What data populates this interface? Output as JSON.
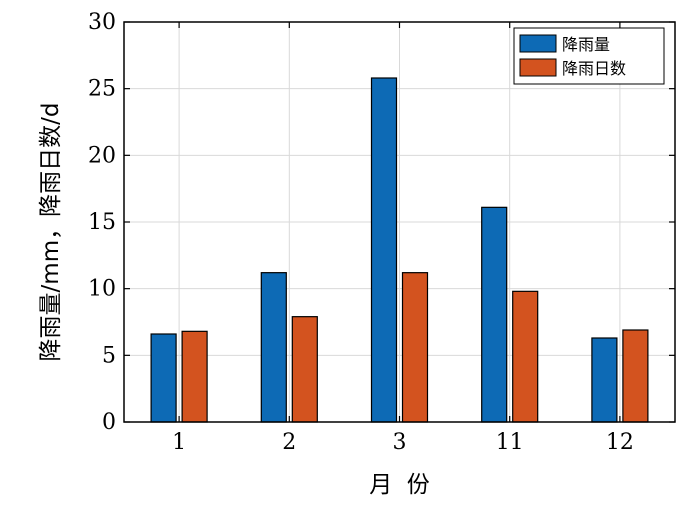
{
  "chart_data": {
    "type": "bar",
    "categories": [
      "1",
      "2",
      "3",
      "11",
      "12"
    ],
    "series": [
      {
        "name": "降雨量",
        "values": [
          6.6,
          11.2,
          25.8,
          16.1,
          6.3
        ],
        "color": "#0d6ab5"
      },
      {
        "name": "降雨日数",
        "values": [
          6.8,
          7.9,
          11.2,
          9.8,
          6.9
        ],
        "color": "#d3531f"
      }
    ],
    "xlabel": "月  份",
    "ylabel": "降雨量/mm，降雨日数/d",
    "ylim": [
      0,
      30
    ],
    "yticks": [
      0,
      5,
      10,
      15,
      20,
      25,
      30
    ],
    "grid": true,
    "legend_position": "top-right"
  }
}
